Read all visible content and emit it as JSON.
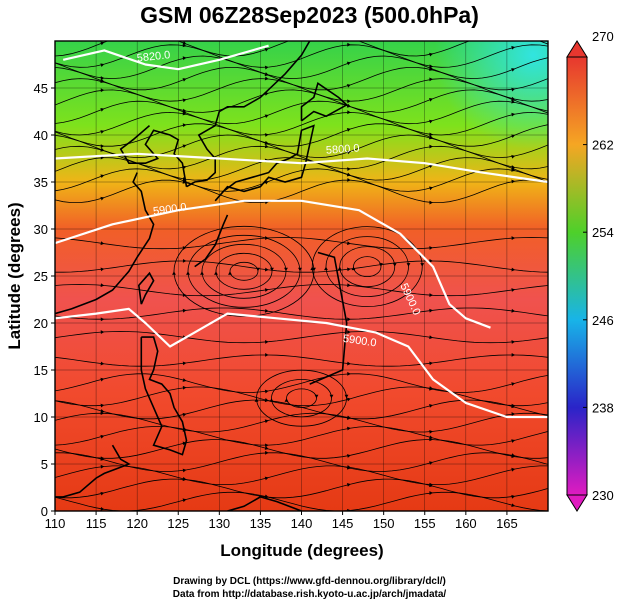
{
  "title": "GSM 06Z28Sep2023 (500.0hPa)",
  "xlabel": "Longitude (degrees)",
  "ylabel": "Latitude  (degrees)",
  "x_ticks": [
    "110",
    "115",
    "120",
    "125",
    "130",
    "135",
    "140",
    "145",
    "150",
    "155",
    "160",
    "165"
  ],
  "y_ticks": [
    "0",
    "5",
    "10",
    "15",
    "20",
    "25",
    "30",
    "35",
    "40",
    "45"
  ],
  "colorbar": {
    "ticks": [
      "270",
      "262",
      "254",
      "246",
      "238",
      "230"
    ]
  },
  "contour_labels": [
    "5820.0",
    "5800.0",
    "5900.0",
    "5900.0",
    "5900.0"
  ],
  "credits": [
    "Drawing by DCL (https://www.gfd-dennou.org/library/dcl/)",
    "Data from http://database.rish.kyoto-u.ac.jp/arch/jmadata/"
  ],
  "chart_data": {
    "type": "heatmap",
    "title": "GSM 06Z28Sep2023 (500.0hPa)",
    "xlabel": "Longitude (degrees)",
    "ylabel": "Latitude  (degrees)",
    "xlim": [
      110,
      170
    ],
    "ylim": [
      0,
      50
    ],
    "colorbar_range": [
      230,
      270
    ],
    "colorbar_ticks": [
      270,
      262,
      254,
      246,
      238,
      230
    ],
    "contours": [
      {
        "level": 5820.0,
        "points": [
          [
            111,
            48
          ],
          [
            116,
            49
          ],
          [
            121,
            47.5
          ],
          [
            125,
            47
          ],
          [
            130,
            48
          ],
          [
            136,
            49.5
          ]
        ]
      },
      {
        "level": 5800.0,
        "points": [
          [
            110,
            37.5
          ],
          [
            120,
            38
          ],
          [
            130,
            37.5
          ],
          [
            140,
            37
          ],
          [
            148,
            37.5
          ],
          [
            155,
            37
          ],
          [
            162,
            36
          ],
          [
            170,
            35
          ]
        ]
      },
      {
        "level": 5900.0,
        "points": [
          [
            110,
            28.5
          ],
          [
            117,
            30.5
          ],
          [
            125,
            32
          ],
          [
            133,
            33
          ],
          [
            140,
            33
          ],
          [
            147,
            32
          ],
          [
            152,
            29.5
          ],
          [
            156,
            26
          ],
          [
            158,
            22
          ],
          [
            160,
            20.5
          ],
          [
            163,
            19.5
          ]
        ]
      },
      {
        "level": 5900.0,
        "points": [
          [
            110,
            20.5
          ],
          [
            115,
            21
          ],
          [
            119,
            21.5
          ],
          [
            121,
            20
          ],
          [
            124,
            17.5
          ],
          [
            127,
            19
          ],
          [
            131,
            21
          ],
          [
            137,
            20.5
          ],
          [
            143,
            20
          ],
          [
            149,
            19
          ],
          [
            153,
            17.5
          ],
          [
            156,
            14
          ],
          [
            160,
            11.5
          ],
          [
            165,
            10
          ],
          [
            170,
            10
          ]
        ]
      }
    ]
  }
}
